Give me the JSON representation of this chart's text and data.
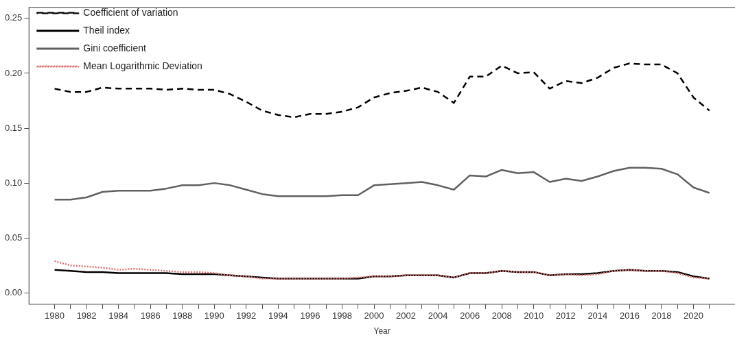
{
  "chart_data": {
    "type": "line",
    "xlabel": "Year",
    "x": [
      1980,
      1981,
      1982,
      1983,
      1984,
      1985,
      1986,
      1987,
      1988,
      1989,
      1990,
      1991,
      1992,
      1993,
      1994,
      1995,
      1996,
      1997,
      1998,
      1999,
      2000,
      2001,
      2002,
      2003,
      2004,
      2005,
      2006,
      2007,
      2008,
      2009,
      2010,
      2011,
      2012,
      2013,
      2014,
      2015,
      2016,
      2017,
      2018,
      2019,
      2020,
      2021
    ],
    "series": [
      {
        "name": "Coefficient of variation",
        "color": "#000000",
        "line_style": "dashed",
        "values": [
          0.186,
          0.183,
          0.183,
          0.187,
          0.186,
          0.186,
          0.186,
          0.185,
          0.186,
          0.185,
          0.185,
          0.181,
          0.174,
          0.166,
          0.162,
          0.16,
          0.163,
          0.163,
          0.165,
          0.169,
          0.178,
          0.182,
          0.184,
          0.187,
          0.183,
          0.173,
          0.197,
          0.197,
          0.207,
          0.2,
          0.201,
          0.186,
          0.193,
          0.191,
          0.196,
          0.205,
          0.209,
          0.208,
          0.208,
          0.2,
          0.178,
          0.166
        ]
      },
      {
        "name": "Theil index",
        "color": "#000000",
        "line_style": "solid",
        "values": [
          0.021,
          0.02,
          0.019,
          0.019,
          0.018,
          0.018,
          0.018,
          0.018,
          0.017,
          0.017,
          0.017,
          0.016,
          0.015,
          0.014,
          0.013,
          0.013,
          0.013,
          0.013,
          0.013,
          0.013,
          0.015,
          0.015,
          0.016,
          0.016,
          0.016,
          0.014,
          0.018,
          0.018,
          0.02,
          0.019,
          0.019,
          0.016,
          0.017,
          0.017,
          0.018,
          0.02,
          0.021,
          0.02,
          0.02,
          0.019,
          0.015,
          0.013
        ]
      },
      {
        "name": "Gini coefficient",
        "color": "#606060",
        "line_style": "solid",
        "values": [
          0.085,
          0.085,
          0.087,
          0.092,
          0.093,
          0.093,
          0.093,
          0.095,
          0.098,
          0.098,
          0.1,
          0.098,
          0.094,
          0.09,
          0.088,
          0.088,
          0.088,
          0.088,
          0.089,
          0.089,
          0.098,
          0.099,
          0.1,
          0.101,
          0.098,
          0.094,
          0.107,
          0.106,
          0.112,
          0.109,
          0.11,
          0.101,
          0.104,
          0.102,
          0.106,
          0.111,
          0.114,
          0.114,
          0.113,
          0.108,
          0.096,
          0.091
        ]
      },
      {
        "name": "Mean Logarithmic Deviation",
        "color": "#e07070",
        "line_style": "dotted",
        "values": [
          0.029,
          0.025,
          0.024,
          0.023,
          0.021,
          0.022,
          0.021,
          0.02,
          0.019,
          0.019,
          0.018,
          0.016,
          0.015,
          0.013,
          0.013,
          0.013,
          0.013,
          0.013,
          0.013,
          0.014,
          0.015,
          0.015,
          0.016,
          0.016,
          0.016,
          0.014,
          0.018,
          0.018,
          0.02,
          0.019,
          0.019,
          0.016,
          0.017,
          0.016,
          0.017,
          0.02,
          0.021,
          0.02,
          0.02,
          0.018,
          0.014,
          0.013
        ]
      }
    ],
    "xlim": [
      1978.4,
      2022.6
    ],
    "xticks": [
      1980,
      {
        "value": 1981,
        "label": null
      },
      1982,
      {
        "value": 1983,
        "label": null
      },
      1984,
      {
        "value": 1985,
        "label": null
      },
      1986,
      {
        "value": 1987,
        "label": null
      },
      1988,
      {
        "value": 1989,
        "label": null
      },
      1990,
      {
        "value": 1991,
        "label": null
      },
      1992,
      {
        "value": 1993,
        "label": null
      },
      1994,
      {
        "value": 1995,
        "label": null
      },
      1996,
      {
        "value": 1997,
        "label": null
      },
      1998,
      {
        "value": 1999,
        "label": null
      },
      2000,
      {
        "value": 2001,
        "label": null
      },
      2002,
      {
        "value": 2003,
        "label": null
      },
      2004,
      {
        "value": 2005,
        "label": null
      },
      2006,
      {
        "value": 2007,
        "label": null
      },
      2008,
      {
        "value": 2009,
        "label": null
      },
      2010,
      {
        "value": 2011,
        "label": null
      },
      2012,
      {
        "value": 2013,
        "label": null
      },
      2014,
      {
        "value": 2015,
        "label": null
      },
      2016,
      {
        "value": 2017,
        "label": null
      },
      2018,
      {
        "value": 2019,
        "label": null
      },
      2020,
      {
        "value": 2021,
        "label": null
      }
    ],
    "ylim": [
      -0.0104,
      0.26
    ],
    "yticks": [
      {
        "value": 0,
        "label": "0.00"
      },
      {
        "value": 0.05,
        "label": "0.05"
      },
      {
        "value": 0.1,
        "label": "0.10"
      },
      {
        "value": 0.15,
        "label": "0.15"
      },
      {
        "value": 0.2,
        "label": "0.20"
      },
      {
        "value": 0.25,
        "label": "0.25"
      }
    ],
    "grid": false,
    "legend": "top left",
    "marker": "none"
  }
}
